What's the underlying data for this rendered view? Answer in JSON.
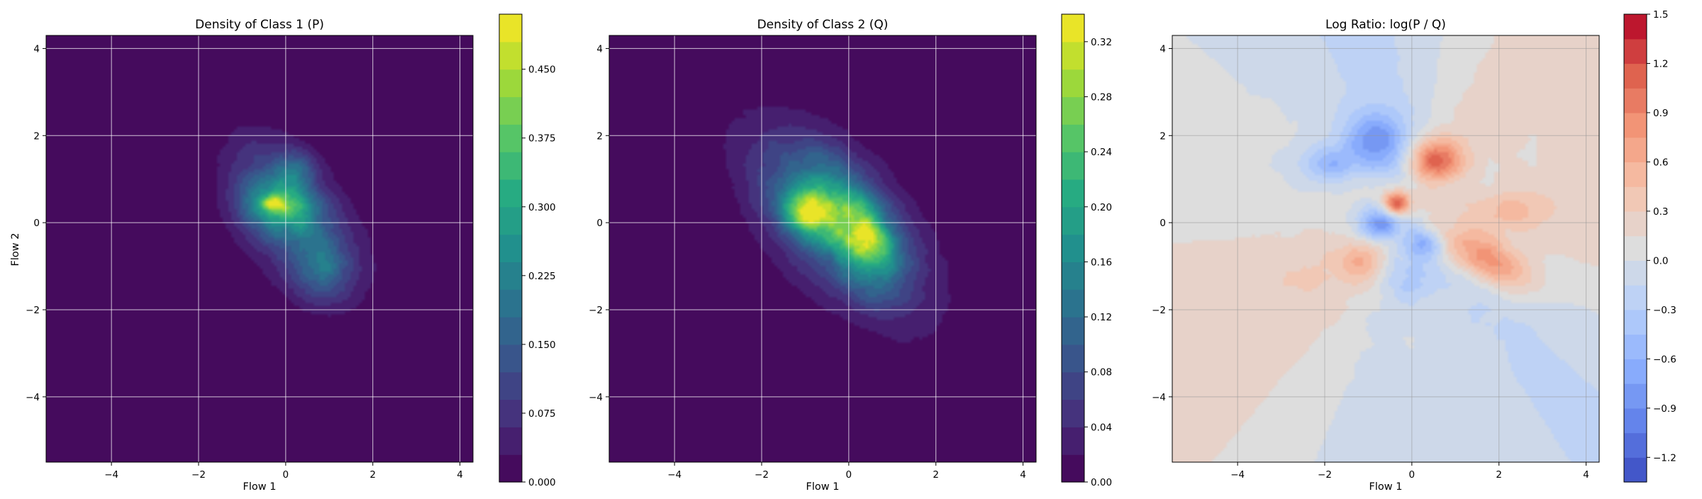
{
  "chart_data": [
    {
      "type": "heatmap",
      "title": "Density of Class 1 (P)",
      "xlabel": "Flow 1",
      "ylabel": "Flow 2",
      "xlim": [
        -5.5,
        4.3
      ],
      "ylim": [
        -5.5,
        4.3
      ],
      "xticks": [
        -4,
        -2,
        0,
        2,
        4
      ],
      "yticks": [
        -4,
        -2,
        0,
        2,
        4
      ],
      "grid": true,
      "colormap": "viridis",
      "colorbar": {
        "min": 0.0,
        "max": 0.51,
        "ticks": [
          "0.000",
          "0.075",
          "0.150",
          "0.225",
          "0.300",
          "0.375",
          "0.450"
        ],
        "levels": 17
      },
      "blobs": [
        {
          "x": -0.3,
          "y": 0.45,
          "sx": 0.18,
          "sy": 0.12,
          "rot": 0,
          "amp": 0.22
        },
        {
          "x": -0.1,
          "y": 0.25,
          "sx": 0.35,
          "sy": 0.3,
          "rot": 0,
          "amp": 0.12
        },
        {
          "x": 0.2,
          "y": 1.2,
          "sx": 0.3,
          "sy": 0.35,
          "rot": 0,
          "amp": 0.1
        },
        {
          "x": 0.1,
          "y": 0.3,
          "sx": 0.55,
          "sy": 1.05,
          "rot": 0.6,
          "amp": 0.16
        },
        {
          "x": -0.2,
          "y": 0.5,
          "sx": 0.6,
          "sy": 0.5,
          "rot": 0,
          "amp": 0.05
        },
        {
          "x": 0.85,
          "y": -1.2,
          "sx": 0.45,
          "sy": 0.4,
          "rot": 0,
          "amp": 0.1
        },
        {
          "x": 0.3,
          "y": -0.2,
          "sx": 0.85,
          "sy": 1.4,
          "rot": 0.7,
          "amp": 0.07
        },
        {
          "x": -0.6,
          "y": 0.4,
          "sx": 0.4,
          "sy": 0.35,
          "rot": 0,
          "amp": 0.05
        }
      ],
      "zero_below": 0.004
    },
    {
      "type": "heatmap",
      "title": "Density of Class 2 (Q)",
      "xlabel": "Flow 1",
      "xlim": [
        -5.5,
        4.3
      ],
      "ylim": [
        -5.5,
        4.3
      ],
      "xticks": [
        -4,
        -2,
        0,
        2,
        4
      ],
      "yticks": [
        -4,
        -2,
        0,
        2,
        4
      ],
      "grid": true,
      "colormap": "viridis",
      "colorbar": {
        "min": 0.0,
        "max": 0.34,
        "ticks": [
          "0.00",
          "0.04",
          "0.08",
          "0.12",
          "0.16",
          "0.20",
          "0.24",
          "0.28",
          "0.32"
        ],
        "levels": 17
      },
      "blobs": [
        {
          "x": -0.9,
          "y": 0.25,
          "sx": 0.45,
          "sy": 0.35,
          "rot": 0,
          "amp": 0.18
        },
        {
          "x": 0.35,
          "y": -0.35,
          "sx": 0.4,
          "sy": 0.35,
          "rot": 0,
          "amp": 0.17
        },
        {
          "x": 0.0,
          "y": 0.3,
          "sx": 0.45,
          "sy": 0.45,
          "rot": 0,
          "amp": 0.1
        },
        {
          "x": -0.3,
          "y": 0.0,
          "sx": 0.75,
          "sy": 1.55,
          "rot": 0.75,
          "amp": 0.12
        },
        {
          "x": -0.5,
          "y": 1.3,
          "sx": 0.4,
          "sy": 0.35,
          "rot": 0,
          "amp": 0.05
        },
        {
          "x": 0.6,
          "y": -1.0,
          "sx": 0.5,
          "sy": 0.5,
          "rot": 0,
          "amp": 0.06
        },
        {
          "x": -0.2,
          "y": 0.0,
          "sx": 1.0,
          "sy": 1.8,
          "rot": 0.75,
          "amp": 0.04
        }
      ],
      "zero_below": 0.004
    },
    {
      "type": "heatmap",
      "title": "Log Ratio: log(P / Q)",
      "xlabel": "Flow 1",
      "xlim": [
        -5.5,
        4.3
      ],
      "ylim": [
        -5.5,
        4.3
      ],
      "xticks": [
        -4,
        -2,
        0,
        2,
        4
      ],
      "yticks": [
        -4,
        -2,
        0,
        2,
        4
      ],
      "grid": true,
      "colormap": "coolwarm",
      "colorbar": {
        "min": -1.35,
        "max": 1.5,
        "ticks": [
          "−1.2",
          "−0.9",
          "−0.6",
          "−0.3",
          "0.0",
          "0.3",
          "0.6",
          "0.9",
          "1.2",
          "1.5"
        ],
        "levels": 19
      },
      "base_field": "sectors",
      "blobs": [
        {
          "x": -0.35,
          "y": 0.45,
          "sx": 0.22,
          "sy": 0.2,
          "rot": 0,
          "amp": 1.3
        },
        {
          "x": 0.5,
          "y": 1.45,
          "sx": 0.45,
          "sy": 0.35,
          "rot": 0,
          "amp": 0.95
        },
        {
          "x": 1.75,
          "y": -0.9,
          "sx": 0.75,
          "sy": 0.35,
          "rot": -0.5,
          "amp": 0.8
        },
        {
          "x": 2.3,
          "y": 0.3,
          "sx": 0.6,
          "sy": 0.3,
          "rot": 0,
          "amp": 0.3
        },
        {
          "x": -0.85,
          "y": 1.9,
          "sx": 0.5,
          "sy": 0.45,
          "rot": 0,
          "amp": -0.75
        },
        {
          "x": -0.75,
          "y": -0.05,
          "sx": 0.35,
          "sy": 0.3,
          "rot": 0,
          "amp": -0.95
        },
        {
          "x": -1.9,
          "y": 1.35,
          "sx": 0.45,
          "sy": 0.3,
          "rot": 0,
          "amp": -0.55
        },
        {
          "x": 0.25,
          "y": -0.5,
          "sx": 0.3,
          "sy": 0.25,
          "rot": 0,
          "amp": -0.6
        },
        {
          "x": 0.0,
          "y": -1.3,
          "sx": 0.4,
          "sy": 0.35,
          "rot": 0,
          "amp": -0.35
        },
        {
          "x": -1.1,
          "y": -0.9,
          "sx": 0.35,
          "sy": 0.3,
          "rot": 0,
          "amp": 0.35
        }
      ]
    }
  ]
}
